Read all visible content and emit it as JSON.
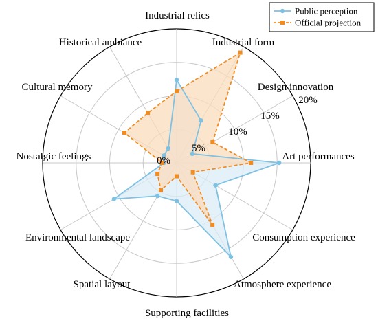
{
  "chart_data": {
    "type": "radar",
    "title": "",
    "categories": [
      "Industrial relics",
      "Industrial form",
      "Design innovation",
      "Art performances",
      "Consumption experience",
      "Atmosphere experience",
      "Supporting facilities",
      "Spatial layout",
      "Environmental landscape",
      "Nostalgic feelings",
      "Cultural memory",
      "Historical ambiance"
    ],
    "rlim": [
      0,
      20
    ],
    "rticks": [
      0,
      5,
      10,
      15,
      20
    ],
    "rtick_labels": [
      "0%",
      "5%",
      "10%",
      "15%",
      "20%"
    ],
    "grid": true,
    "legend_position": "top-right",
    "series": [
      {
        "name": "Public perception",
        "color": "#7ec1e2",
        "fill": "#dcecf7",
        "marker": "circle",
        "line_style": "solid",
        "values": [
          12.4,
          7.3,
          2.7,
          15.3,
          6.7,
          16.2,
          5.7,
          5.7,
          10.8,
          1.9,
          2.2,
          2.5
        ]
      },
      {
        "name": "Official projection",
        "color": "#f08c24",
        "fill": "#fbdcbc",
        "marker": "square",
        "line_style": "dashed",
        "values": [
          10.7,
          19.0,
          6.2,
          11.1,
          2.8,
          10.7,
          2.0,
          4.7,
          3.3,
          2.2,
          9.0,
          8.6
        ]
      }
    ]
  }
}
